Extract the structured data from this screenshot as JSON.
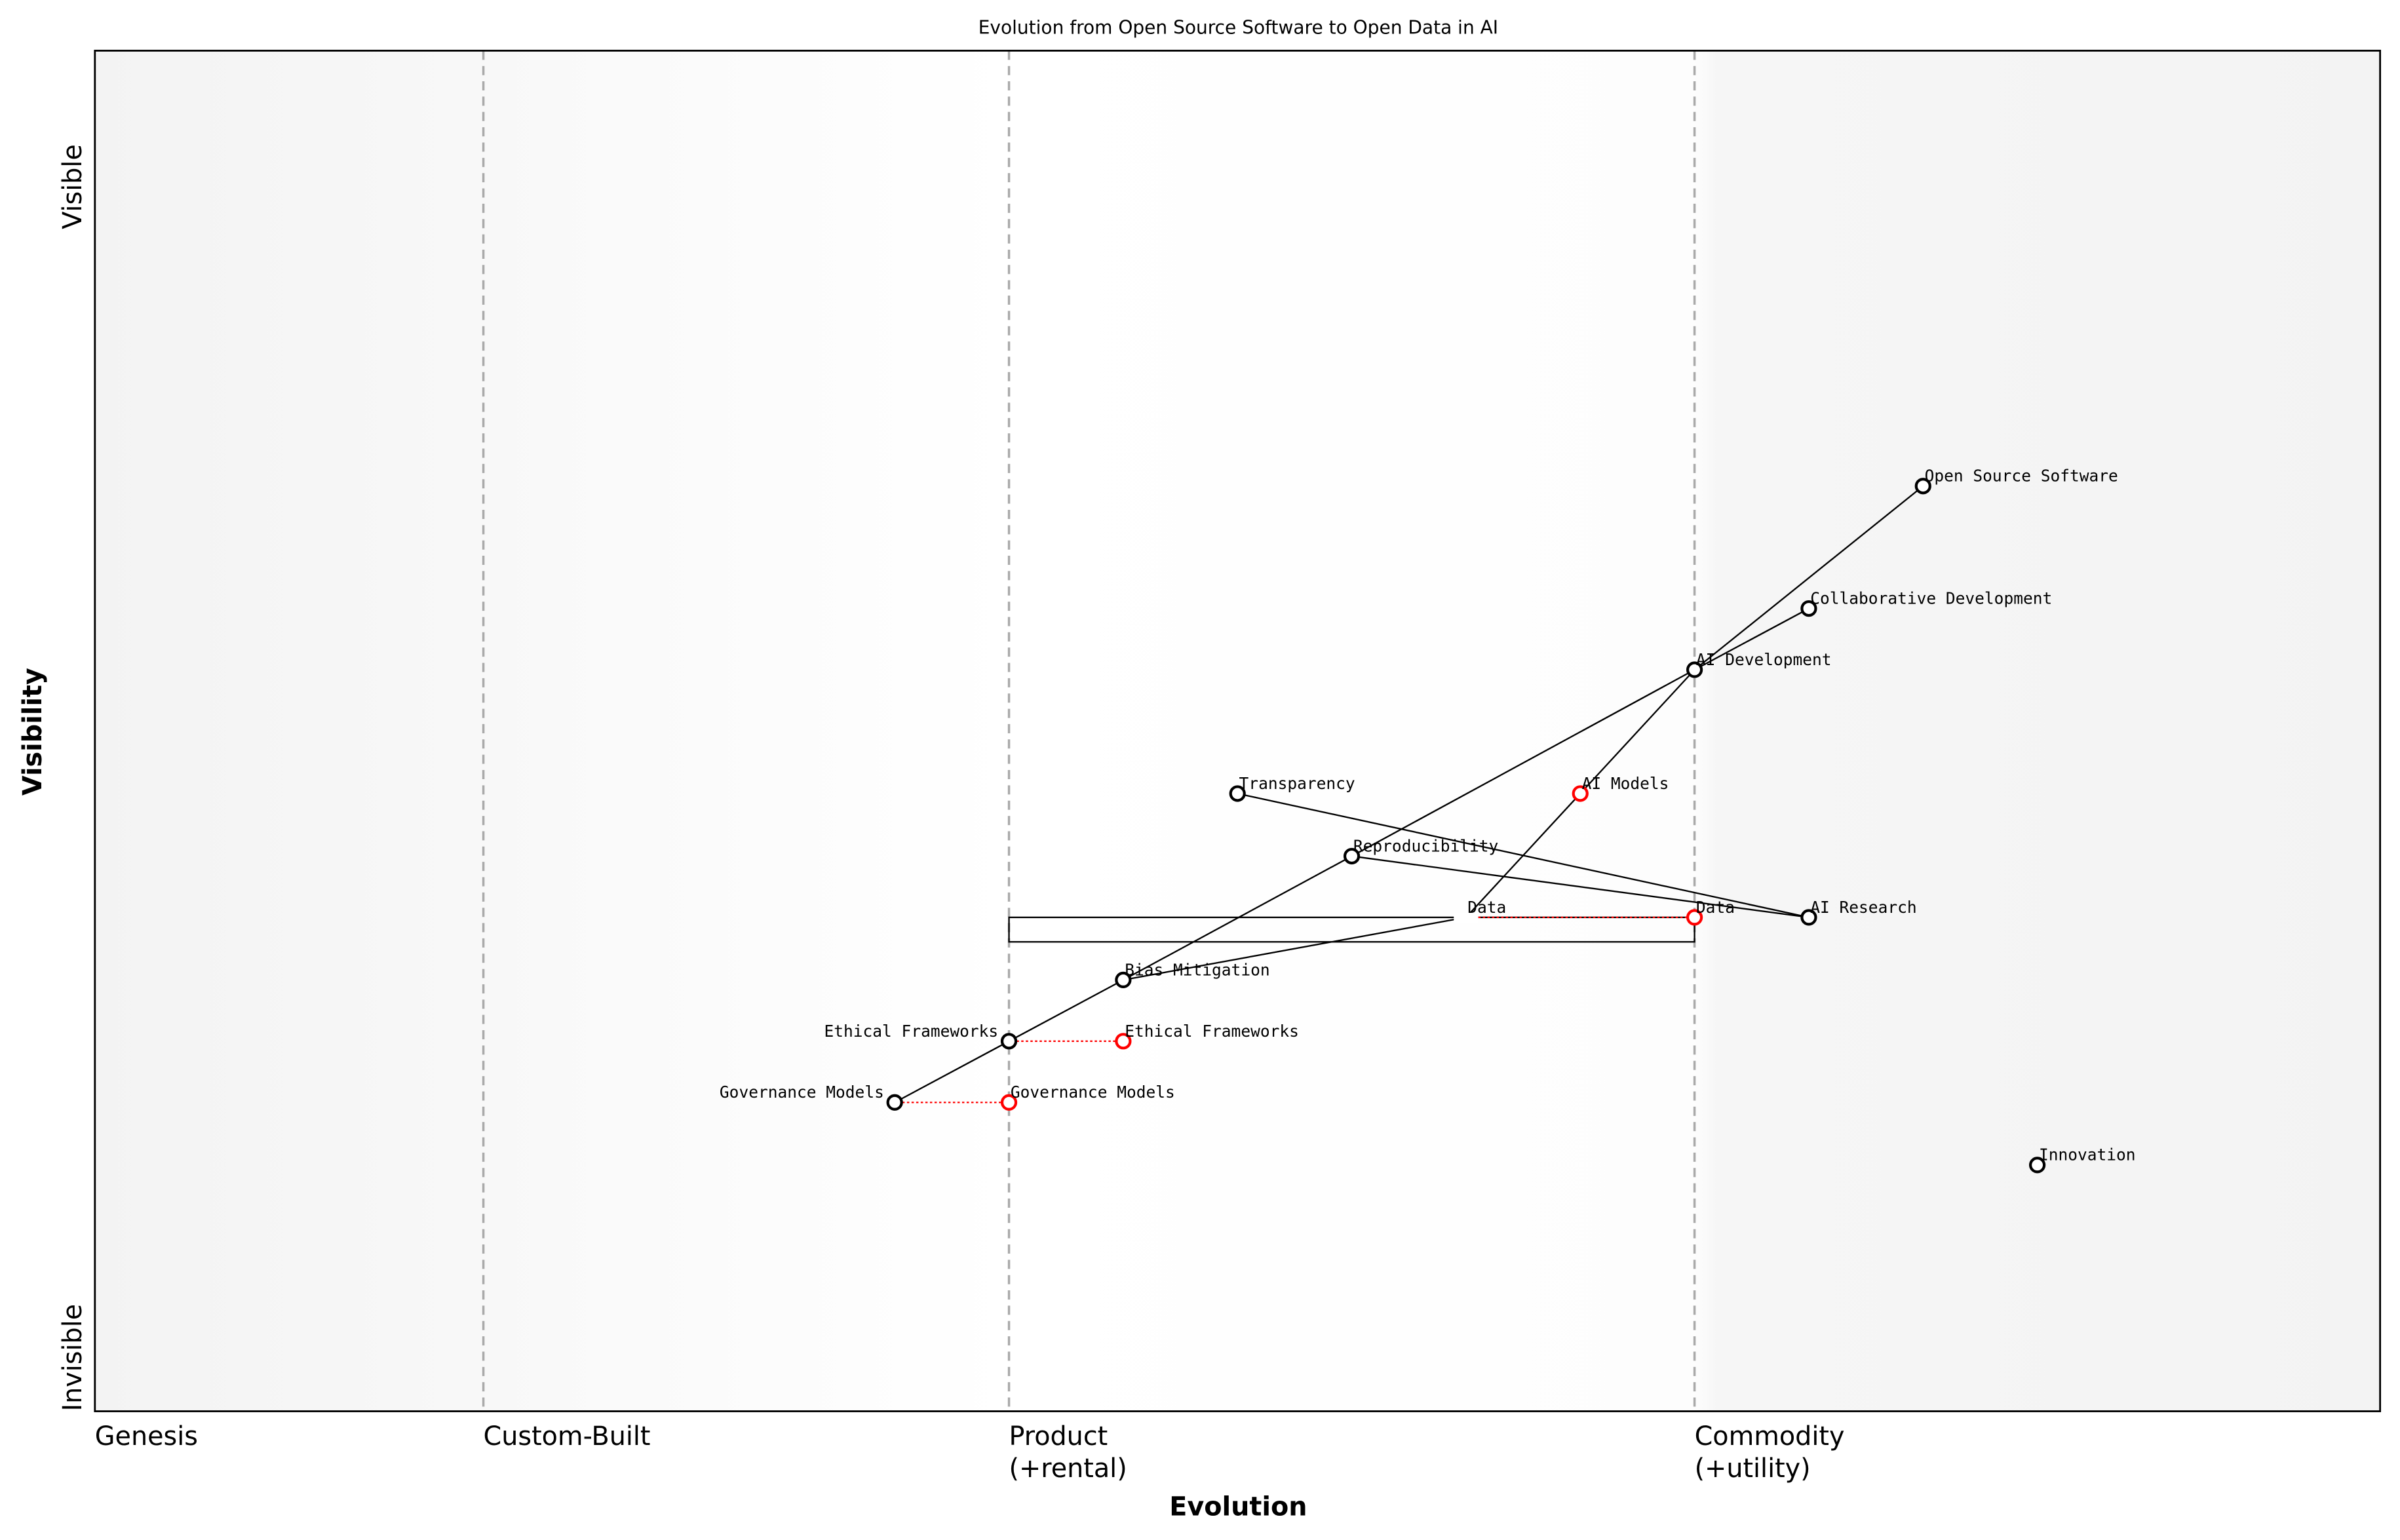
{
  "chart_data": {
    "type": "wardley-map",
    "title": "Evolution from Open Source Software to Open Data in AI",
    "xlabel": "Evolution",
    "ylabel": "Visibility",
    "xlim": [
      0,
      1
    ],
    "ylim": [
      0,
      1
    ],
    "x_stages": [
      {
        "label": "Genesis",
        "x": 0.0
      },
      {
        "label": "Custom-Built",
        "x": 0.17
      },
      {
        "label": "Product\n(+rental)",
        "x": 0.4
      },
      {
        "label": "Commodity\n(+utility)",
        "x": 0.7
      }
    ],
    "y_ticks": [
      {
        "label": "Visible",
        "y": 0.9
      },
      {
        "label": "Invisible",
        "y": 0.0
      }
    ],
    "components": [
      {
        "name": "Open Source Software",
        "x": 0.8,
        "y": 0.68
      },
      {
        "name": "Collaborative Development",
        "x": 0.75,
        "y": 0.59
      },
      {
        "name": "AI Development",
        "x": 0.7,
        "y": 0.545
      },
      {
        "name": "Transparency",
        "x": 0.5,
        "y": 0.454
      },
      {
        "name": "Reproducibility",
        "x": 0.55,
        "y": 0.408
      },
      {
        "name": "AI Research",
        "x": 0.75,
        "y": 0.363
      },
      {
        "name": "Data",
        "x": 0.6,
        "y": 0.363,
        "pipeline": true
      },
      {
        "name": "Bias Mitigation",
        "x": 0.45,
        "y": 0.317
      },
      {
        "name": "Ethical Frameworks",
        "x": 0.4,
        "y": 0.272
      },
      {
        "name": "Governance Models",
        "x": 0.35,
        "y": 0.227
      },
      {
        "name": "Innovation",
        "x": 0.85,
        "y": 0.181
      }
    ],
    "evolved": [
      {
        "name": "AI Models",
        "x": 0.65,
        "y": 0.454
      },
      {
        "name": "Data",
        "from_x": 0.6,
        "x": 0.7,
        "y": 0.363
      },
      {
        "name": "Ethical Frameworks",
        "from_x": 0.4,
        "x": 0.45,
        "y": 0.272
      },
      {
        "name": "Governance Models",
        "from_x": 0.35,
        "x": 0.4,
        "y": 0.227
      }
    ],
    "links": [
      [
        "Open Source Software",
        "AI Development"
      ],
      [
        "Collaborative Development",
        "AI Development"
      ],
      [
        "AI Development",
        "Reproducibility"
      ],
      [
        "Reproducibility",
        "Bias Mitigation"
      ],
      [
        "AI Development",
        "Data"
      ],
      [
        "Transparency",
        "AI Research"
      ],
      [
        "Reproducibility",
        "AI Research"
      ],
      [
        "Bias Mitigation",
        "Data"
      ],
      [
        "Bias Mitigation",
        "Ethical Frameworks"
      ],
      [
        "Ethical Frameworks",
        "Governance Models"
      ]
    ],
    "pipeline": {
      "name": "Data",
      "x_start": 0.4,
      "x_end": 0.7,
      "y_top": 0.363,
      "y_bottom": 0.345
    },
    "colors": {
      "component": "#000000",
      "evolved": "#ff0000",
      "stage_line": "#aaaaaa",
      "band": "#f4f4f4"
    }
  }
}
